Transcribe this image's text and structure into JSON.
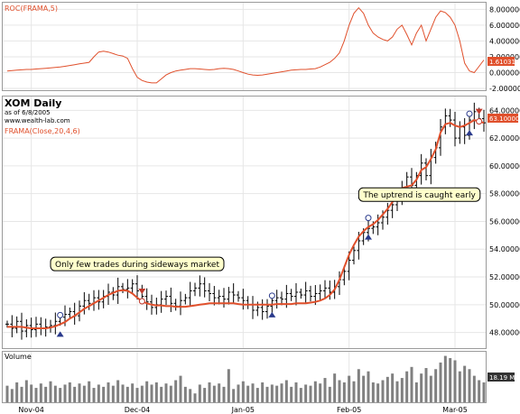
{
  "chart_data": {
    "type": "line",
    "title": "XOM Daily",
    "subtitle": "as of 6/8/2005",
    "source": "www.wealth-lab.com",
    "x_labels": [
      "Nov-04",
      "Dec-04",
      "Jan-05",
      "Feb-05",
      "Mar-05"
    ],
    "roc_panel": {
      "label": "ROC(FRAMA,5)",
      "last_value_label": "1.61031",
      "y_ticks": [
        "8.000000",
        "6.000000",
        "4.000000",
        "2.000000",
        "0.000000",
        "-2.000000"
      ],
      "ylim": [
        -2,
        8.5
      ],
      "color": "#e0502c",
      "values": [
        0.2,
        0.25,
        0.3,
        0.35,
        0.4,
        0.4,
        0.45,
        0.5,
        0.55,
        0.6,
        0.65,
        0.7,
        0.8,
        0.9,
        1.0,
        1.1,
        1.2,
        1.3,
        2.0,
        2.6,
        2.7,
        2.6,
        2.4,
        2.2,
        2.1,
        1.8,
        0.5,
        -0.6,
        -1.0,
        -1.2,
        -1.3,
        -1.3,
        -0.8,
        -0.3,
        0.0,
        0.2,
        0.3,
        0.4,
        0.5,
        0.5,
        0.45,
        0.4,
        0.35,
        0.4,
        0.5,
        0.55,
        0.5,
        0.4,
        0.2,
        0.0,
        -0.2,
        -0.3,
        -0.35,
        -0.3,
        -0.2,
        -0.1,
        0.0,
        0.1,
        0.2,
        0.3,
        0.35,
        0.4,
        0.4,
        0.45,
        0.5,
        0.7,
        1.0,
        1.3,
        1.8,
        2.5,
        4.0,
        6.0,
        7.5,
        8.2,
        7.5,
        6.0,
        5.0,
        4.5,
        4.2,
        4.0,
        4.5,
        5.5,
        6.0,
        4.8,
        3.5,
        5.0,
        6.0,
        4.0,
        5.5,
        7.0,
        7.8,
        7.6,
        7.0,
        6.0,
        4.0,
        1.2,
        0.2,
        0.0,
        0.8,
        1.6
      ]
    },
    "price_panel": {
      "label": "FRAMA(Close,20,4,6)",
      "last_value_label": "63.10000",
      "y_ticks": [
        "64.00000",
        "62.00000",
        "60.00000",
        "58.00000",
        "56.00000",
        "54.00000",
        "52.00000",
        "50.00000",
        "48.00000"
      ],
      "ylim": [
        47,
        64.8
      ],
      "frama_color": "#e0502c",
      "close": [
        48.6,
        48.3,
        48.8,
        48.1,
        48.5,
        48.2,
        48.6,
        48.3,
        48.4,
        48.5,
        48.8,
        49.1,
        49.3,
        49.5,
        49.2,
        49.9,
        50.3,
        50.1,
        50.5,
        50.2,
        50.6,
        50.9,
        50.7,
        51.3,
        51.1,
        51.2,
        51.5,
        51.0,
        50.6,
        50.2,
        49.8,
        50.0,
        50.4,
        50.6,
        50.1,
        49.9,
        50.3,
        50.5,
        51.0,
        51.2,
        51.5,
        51.0,
        50.8,
        50.5,
        50.6,
        50.4,
        50.9,
        50.7,
        50.5,
        50.3,
        50.0,
        49.6,
        49.8,
        49.5,
        49.9,
        50.3,
        50.5,
        50.4,
        50.8,
        50.6,
        50.9,
        50.7,
        51.0,
        50.6,
        50.8,
        51.0,
        51.2,
        50.9,
        51.3,
        51.8,
        52.4,
        53.2,
        53.9,
        54.6,
        55.2,
        55.5,
        55.6,
        55.9,
        56.3,
        56.8,
        57.2,
        57.8,
        58.3,
        59.2,
        58.6,
        59.3,
        60.2,
        59.3,
        60.6,
        61.3,
        62.8,
        63.6,
        63.3,
        62.0,
        62.8,
        62.2,
        63.3,
        63.9,
        63.4,
        63.1
      ],
      "frama": [
        48.4,
        48.4,
        48.4,
        48.4,
        48.35,
        48.3,
        48.3,
        48.3,
        48.3,
        48.35,
        48.45,
        48.6,
        48.75,
        49.0,
        49.2,
        49.45,
        49.7,
        49.9,
        50.1,
        50.3,
        50.5,
        50.7,
        50.85,
        51.0,
        51.05,
        51.0,
        50.8,
        50.5,
        50.25,
        50.1,
        50.0,
        49.95,
        49.95,
        49.9,
        49.9,
        49.85,
        49.85,
        49.85,
        49.9,
        49.95,
        50.0,
        50.05,
        50.1,
        50.1,
        50.1,
        50.1,
        50.1,
        50.1,
        50.05,
        50.0,
        50.0,
        50.0,
        50.0,
        50.0,
        50.0,
        50.0,
        50.05,
        50.05,
        50.05,
        50.05,
        50.1,
        50.1,
        50.1,
        50.15,
        50.2,
        50.3,
        50.45,
        50.7,
        51.1,
        51.8,
        52.7,
        53.6,
        54.3,
        54.9,
        55.3,
        55.6,
        55.8,
        56.1,
        56.5,
        56.9,
        57.4,
        57.9,
        58.4,
        58.5,
        58.6,
        59.0,
        59.7,
        59.9,
        60.5,
        61.2,
        62.4,
        63.0,
        63.1,
        62.9,
        62.8,
        62.9,
        63.1,
        63.3,
        63.2,
        63.1
      ],
      "buy_signals": [
        11,
        55,
        75,
        96
      ],
      "sell_signals": [
        28,
        98
      ],
      "annotations": [
        {
          "text": "The uptrend is caught early",
          "x_index": 73,
          "y": 57.9
        },
        {
          "text": "Only few trades during sideways market",
          "x_index": 9,
          "y": 52.9
        }
      ]
    },
    "volume_panel": {
      "label": "Volume",
      "last_value_label": "18.19 M",
      "values": [
        15,
        12,
        18,
        14,
        20,
        16,
        13,
        17,
        14,
        19,
        15,
        13,
        16,
        18,
        14,
        17,
        15,
        19,
        13,
        16,
        14,
        18,
        15,
        20,
        16,
        14,
        17,
        13,
        15,
        19,
        16,
        18,
        14,
        17,
        15,
        20,
        24,
        14,
        12,
        8,
        16,
        13,
        18,
        15,
        17,
        14,
        30,
        12,
        16,
        19,
        15,
        17,
        13,
        18,
        14,
        16,
        15,
        17,
        20,
        14,
        18,
        13,
        16,
        15,
        19,
        17,
        22,
        14,
        26,
        20,
        18,
        24,
        19,
        30,
        24,
        28,
        18,
        17,
        20,
        23,
        26,
        19,
        22,
        28,
        32,
        18,
        26,
        31,
        24,
        30,
        36,
        42,
        40,
        38,
        28,
        33,
        30,
        24,
        20,
        18
      ],
      "color": "#808080"
    }
  }
}
